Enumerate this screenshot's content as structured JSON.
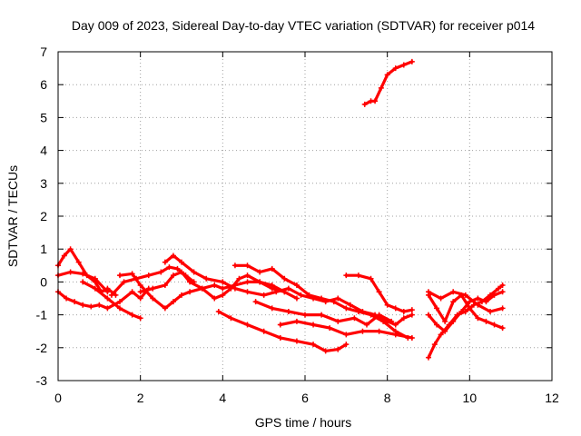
{
  "chart_data": {
    "type": "line",
    "title": "Day 009 of 2023, Sidereal Day-to-day VTEC variation (SDTVAR) for receiver p014",
    "xlabel": "GPS time / hours",
    "ylabel": "SDTVAR / TECUs",
    "xlim": [
      0,
      12
    ],
    "ylim": [
      -3,
      7
    ],
    "xticks": [
      0,
      2,
      4,
      6,
      8,
      10,
      12
    ],
    "yticks": [
      -3,
      -2,
      -1,
      0,
      1,
      2,
      3,
      4,
      5,
      6,
      7
    ],
    "grid": true,
    "marker": "+",
    "color": "#ff0000",
    "series": [
      {
        "name": "arc-1",
        "x": [
          0.0,
          0.15,
          0.3,
          0.5,
          0.7,
          0.9,
          1.05,
          1.2,
          1.4
        ],
        "y": [
          0.5,
          0.8,
          1.0,
          0.6,
          0.2,
          0.0,
          -0.3,
          -0.2,
          -0.4
        ]
      },
      {
        "name": "arc-2",
        "x": [
          0.0,
          0.3,
          0.6,
          0.9,
          1.2
        ],
        "y": [
          0.2,
          0.3,
          0.25,
          0.1,
          -0.3
        ]
      },
      {
        "name": "arc-3",
        "x": [
          0.0,
          0.2,
          0.4,
          0.6,
          0.8,
          1.0,
          1.2,
          1.5,
          1.8,
          2.0,
          2.2
        ],
        "y": [
          -0.3,
          -0.5,
          -0.6,
          -0.7,
          -0.75,
          -0.7,
          -0.8,
          -0.6,
          -0.3,
          -0.5,
          -0.2
        ]
      },
      {
        "name": "arc-4",
        "x": [
          1.3,
          1.6,
          1.9,
          2.2,
          2.5,
          2.7,
          2.9,
          3.1,
          3.3
        ],
        "y": [
          -0.4,
          0.0,
          0.1,
          0.2,
          0.3,
          0.45,
          0.4,
          0.2,
          0.0
        ]
      },
      {
        "name": "arc-5",
        "x": [
          0.6,
          0.9,
          1.2,
          1.5,
          1.8,
          2.0
        ],
        "y": [
          0.0,
          -0.2,
          -0.5,
          -0.8,
          -1.0,
          -1.1
        ]
      },
      {
        "name": "arc-6",
        "x": [
          1.5,
          1.8,
          2.0,
          2.3,
          2.6,
          2.8,
          3.0,
          3.2,
          3.5,
          3.8,
          4.0,
          4.3,
          4.6,
          4.9,
          5.2,
          5.5,
          5.8
        ],
        "y": [
          0.2,
          0.25,
          -0.1,
          -0.5,
          -0.8,
          -0.6,
          -0.4,
          -0.3,
          -0.2,
          -0.1,
          -0.2,
          -0.1,
          0.0,
          0.0,
          -0.1,
          -0.3,
          -0.5
        ]
      },
      {
        "name": "arc-7",
        "x": [
          2.0,
          2.3,
          2.6,
          2.8,
          3.0,
          3.2,
          3.5,
          3.8,
          4.0,
          4.2,
          4.4,
          4.6,
          4.9,
          5.2,
          5.5
        ],
        "y": [
          -0.3,
          -0.2,
          -0.1,
          0.2,
          0.3,
          0.0,
          -0.2,
          -0.5,
          -0.4,
          -0.2,
          0.1,
          0.2,
          0.0,
          -0.2,
          -0.3
        ]
      },
      {
        "name": "arc-8",
        "x": [
          2.6,
          2.8,
          3.0,
          3.3,
          3.6,
          4.0,
          4.3,
          4.6,
          5.0,
          5.3,
          5.6,
          5.9,
          6.2,
          6.5,
          6.8,
          7.1,
          7.4,
          7.7,
          8.0,
          8.2,
          8.4,
          8.6
        ],
        "y": [
          0.6,
          0.8,
          0.6,
          0.3,
          0.1,
          0.0,
          -0.2,
          -0.3,
          -0.4,
          -0.3,
          -0.2,
          -0.4,
          -0.5,
          -0.6,
          -0.5,
          -0.7,
          -0.9,
          -1.0,
          -1.2,
          -1.3,
          -1.1,
          -1.0
        ]
      },
      {
        "name": "arc-9",
        "x": [
          4.3,
          4.6,
          4.9,
          5.2,
          5.5,
          5.8,
          6.1,
          6.4,
          6.7,
          7.0,
          7.3,
          7.6,
          7.9,
          8.2,
          8.5
        ],
        "y": [
          0.5,
          0.5,
          0.3,
          0.4,
          0.1,
          -0.1,
          -0.4,
          -0.5,
          -0.6,
          -0.8,
          -0.9,
          -1.0,
          -1.2,
          -1.5,
          -1.7
        ]
      },
      {
        "name": "arc-10",
        "x": [
          3.9,
          4.2,
          4.6,
          5.0,
          5.4,
          5.8,
          6.2,
          6.5,
          6.8,
          7.0
        ],
        "y": [
          -0.9,
          -1.1,
          -1.3,
          -1.5,
          -1.7,
          -1.8,
          -1.9,
          -2.1,
          -2.05,
          -1.9
        ]
      },
      {
        "name": "arc-11",
        "x": [
          5.4,
          5.8,
          6.2,
          6.6,
          7.0,
          7.4,
          7.8,
          8.2,
          8.6
        ],
        "y": [
          -1.3,
          -1.2,
          -1.3,
          -1.4,
          -1.6,
          -1.5,
          -1.5,
          -1.6,
          -1.7
        ]
      },
      {
        "name": "arc-12",
        "x": [
          4.8,
          5.2,
          5.6,
          6.0,
          6.4,
          6.8,
          7.2,
          7.5,
          7.8,
          8.1
        ],
        "y": [
          -0.6,
          -0.8,
          -0.9,
          -1.0,
          -1.0,
          -1.2,
          -1.1,
          -1.3,
          -1.0,
          -1.2
        ]
      },
      {
        "name": "arc-13",
        "x": [
          7.0,
          7.3,
          7.6,
          7.8,
          8.0,
          8.2,
          8.4,
          8.6
        ],
        "y": [
          0.2,
          0.2,
          0.1,
          -0.3,
          -0.7,
          -0.8,
          -0.9,
          -0.85
        ]
      },
      {
        "name": "arc-14",
        "x": [
          7.45,
          7.6,
          7.7,
          7.85,
          8.0,
          8.2,
          8.4,
          8.6
        ],
        "y": [
          5.4,
          5.5,
          5.5,
          5.9,
          6.3,
          6.5,
          6.6,
          6.7
        ]
      },
      {
        "name": "arc-15",
        "x": [
          9.0,
          9.15,
          9.3,
          9.5,
          9.7,
          9.9,
          10.1,
          10.3,
          10.5,
          10.7,
          10.8
        ],
        "y": [
          -2.3,
          -1.9,
          -1.6,
          -1.3,
          -1.0,
          -0.9,
          -0.7,
          -0.6,
          -0.4,
          -0.2,
          -0.1
        ]
      },
      {
        "name": "arc-16",
        "x": [
          9.0,
          9.2,
          9.4,
          9.6,
          9.8,
          10.0,
          10.2,
          10.4,
          10.6,
          10.8
        ],
        "y": [
          -0.4,
          -0.8,
          -1.2,
          -0.6,
          -0.4,
          -0.8,
          -1.1,
          -1.2,
          -1.3,
          -1.4
        ]
      },
      {
        "name": "arc-17",
        "x": [
          9.0,
          9.3,
          9.6,
          9.9,
          10.2,
          10.5,
          10.8
        ],
        "y": [
          -0.3,
          -0.5,
          -0.3,
          -0.4,
          -0.7,
          -0.9,
          -0.8
        ]
      },
      {
        "name": "arc-18",
        "x": [
          9.0,
          9.2,
          9.4,
          9.6,
          9.8,
          10.0,
          10.2,
          10.4,
          10.6,
          10.8
        ],
        "y": [
          -1.0,
          -1.3,
          -1.5,
          -1.2,
          -0.9,
          -0.6,
          -0.5,
          -0.6,
          -0.4,
          -0.3
        ]
      }
    ]
  }
}
